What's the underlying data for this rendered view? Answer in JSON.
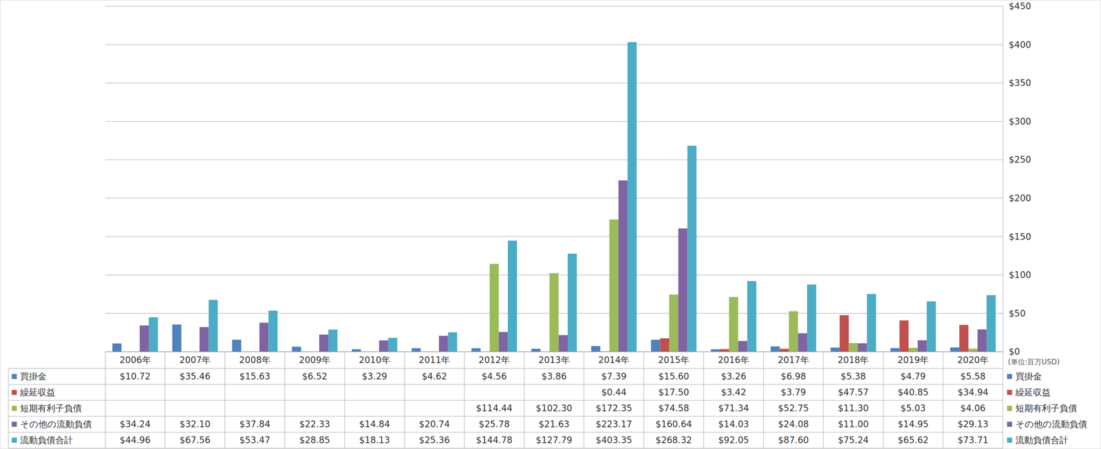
{
  "chart_data": {
    "type": "bar",
    "annotation": "(単位:百万USD)",
    "categories": [
      "2006年",
      "2007年",
      "2008年",
      "2009年",
      "2010年",
      "2011年",
      "2012年",
      "2013年",
      "2014年",
      "2015年",
      "2016年",
      "2017年",
      "2018年",
      "2019年",
      "2020年"
    ],
    "ylim": [
      0,
      450
    ],
    "yticks": [
      {
        "value": 0,
        "label": "$0"
      },
      {
        "value": 50,
        "label": "$50"
      },
      {
        "value": 100,
        "label": "$100"
      },
      {
        "value": 150,
        "label": "$150"
      },
      {
        "value": 200,
        "label": "$200"
      },
      {
        "value": 250,
        "label": "$250"
      },
      {
        "value": 300,
        "label": "$300"
      },
      {
        "value": 350,
        "label": "$350"
      },
      {
        "value": 400,
        "label": "$400"
      },
      {
        "value": 450,
        "label": "$450"
      }
    ],
    "grid": true,
    "series": [
      {
        "name": "買掛金",
        "color": "#4f81bd",
        "values": [
          10.72,
          35.46,
          15.63,
          6.52,
          3.29,
          4.62,
          4.56,
          3.86,
          7.39,
          15.6,
          3.26,
          6.98,
          5.38,
          4.79,
          5.58
        ],
        "value_labels": [
          "$10.72",
          "$35.46",
          "$15.63",
          "$6.52",
          "$3.29",
          "$4.62",
          "$4.56",
          "$3.86",
          "$7.39",
          "$15.60",
          "$3.26",
          "$6.98",
          "$5.38",
          "$4.79",
          "$5.58"
        ]
      },
      {
        "name": "繰延収益",
        "color": "#c0504d",
        "values": [
          null,
          null,
          null,
          null,
          null,
          null,
          null,
          null,
          0.44,
          17.5,
          3.42,
          3.79,
          47.57,
          40.85,
          34.94
        ],
        "value_labels": [
          null,
          null,
          null,
          null,
          null,
          null,
          null,
          null,
          "$0.44",
          "$17.50",
          "$3.42",
          "$3.79",
          "$47.57",
          "$40.85",
          "$34.94"
        ]
      },
      {
        "name": "短期有利子負債",
        "color": "#9bbb59",
        "values": [
          null,
          null,
          null,
          null,
          null,
          null,
          114.44,
          102.3,
          172.35,
          74.58,
          71.34,
          52.75,
          11.3,
          5.03,
          4.06
        ],
        "value_labels": [
          null,
          null,
          null,
          null,
          null,
          null,
          "$114.44",
          "$102.30",
          "$172.35",
          "$74.58",
          "$71.34",
          "$52.75",
          "$11.30",
          "$5.03",
          "$4.06"
        ]
      },
      {
        "name": "その他の流動負債",
        "color": "#8064a2",
        "values": [
          34.24,
          32.1,
          37.84,
          22.33,
          14.84,
          20.74,
          25.78,
          21.63,
          223.17,
          160.64,
          14.03,
          24.08,
          11.0,
          14.95,
          29.13
        ],
        "value_labels": [
          "$34.24",
          "$32.10",
          "$37.84",
          "$22.33",
          "$14.84",
          "$20.74",
          "$25.78",
          "$21.63",
          "$223.17",
          "$160.64",
          "$14.03",
          "$24.08",
          "$11.00",
          "$14.95",
          "$29.13"
        ]
      },
      {
        "name": "流動負債合計",
        "color": "#4bacc6",
        "values": [
          44.96,
          67.56,
          53.47,
          28.85,
          18.13,
          25.36,
          144.78,
          127.79,
          403.35,
          268.32,
          92.05,
          87.6,
          75.24,
          65.62,
          73.71
        ],
        "value_labels": [
          "$44.96",
          "$67.56",
          "$53.47",
          "$28.85",
          "$18.13",
          "$25.36",
          "$144.78",
          "$127.79",
          "$403.35",
          "$268.32",
          "$92.05",
          "$87.60",
          "$75.24",
          "$65.62",
          "$73.71"
        ]
      }
    ]
  }
}
